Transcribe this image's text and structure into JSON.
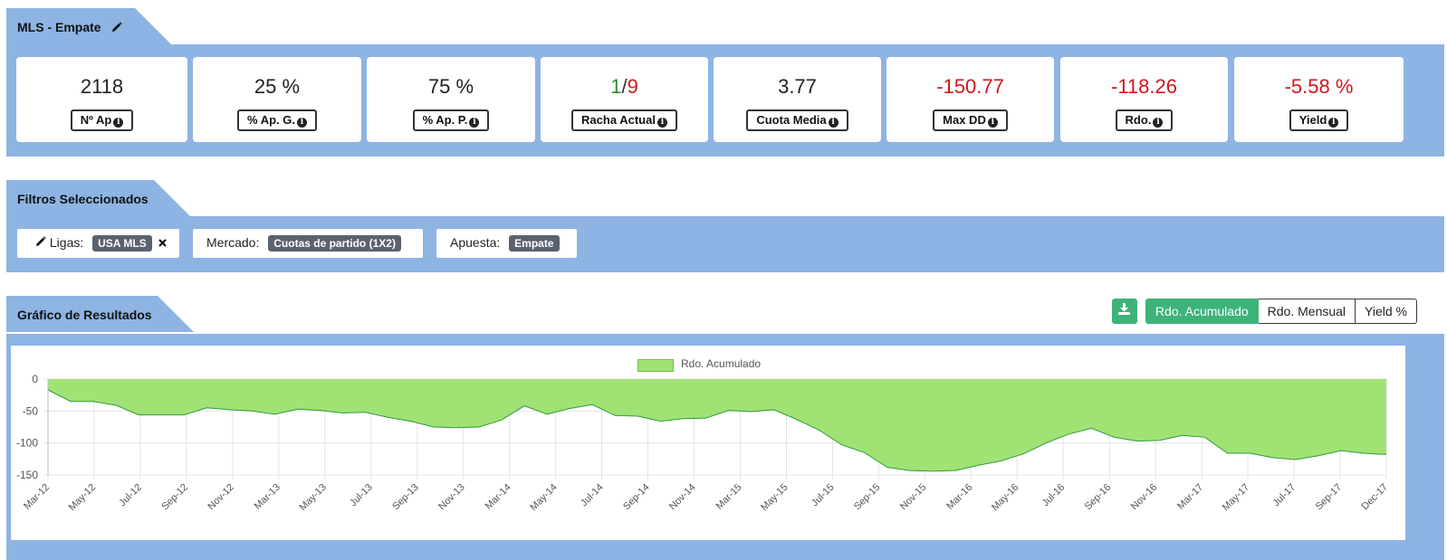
{
  "strategy": {
    "title": "MLS - Empate"
  },
  "stats": [
    {
      "value": "2118",
      "label": "Nº Ap",
      "tone": "neutral"
    },
    {
      "value": "25 %",
      "label": "% Ap. G.",
      "tone": "neutral"
    },
    {
      "value": "75 %",
      "label": "% Ap. P.",
      "tone": "neutral"
    },
    {
      "value_win": "1",
      "value_sep": "/",
      "value_loss": "9",
      "label": "Racha Actual",
      "tone": "streak"
    },
    {
      "value": "3.77",
      "label": "Cuota Media",
      "tone": "neutral"
    },
    {
      "value": "-150.77",
      "label": "Max DD",
      "tone": "negative"
    },
    {
      "value": "-118.26",
      "label": "Rdo.",
      "tone": "negative"
    },
    {
      "value": "-5.58 %",
      "label": "Yield",
      "tone": "negative"
    }
  ],
  "filters": {
    "title": "Filtros Seleccionados",
    "items": [
      {
        "label": "Ligas:",
        "value": "USA MLS",
        "editable": true,
        "removable": true
      },
      {
        "label": "Mercado:",
        "value": "Cuotas de partido (1X2)"
      },
      {
        "label": "Apuesta:",
        "value": "Empate"
      }
    ]
  },
  "results": {
    "title": "Gráfico de Resultados",
    "buttons": [
      "Rdo. Acumulado",
      "Rdo. Mensual",
      "Yield %"
    ],
    "active_button": "Rdo. Acumulado"
  },
  "colors": {
    "band": "#8eb4e3",
    "accent": "#3db37a",
    "area_fill": "#a1e275",
    "area_line": "#2f9a3a",
    "negative": "#d0161c",
    "positive": "#2a8c2a"
  },
  "chart_data": {
    "type": "area",
    "legend": [
      "Rdo. Acumulado"
    ],
    "ylim": [
      -150,
      0
    ],
    "yticks": [
      0,
      -50,
      -100,
      -150
    ],
    "xtick_labels": [
      "Mar-12",
      "May-12",
      "Jul-12",
      "Sep-12",
      "Nov-12",
      "Mar-13",
      "May-13",
      "Jul-13",
      "Sep-13",
      "Nov-13",
      "Mar-14",
      "May-14",
      "Jul-14",
      "Sep-14",
      "Nov-14",
      "Mar-15",
      "May-15",
      "Jul-15",
      "Sep-15",
      "Nov-15",
      "Mar-16",
      "May-16",
      "Jul-16",
      "Sep-16",
      "Nov-16",
      "Mar-17",
      "May-17",
      "Jul-17",
      "Sep-17",
      "Dec-17"
    ],
    "series": [
      {
        "name": "Rdo. Acumulado",
        "values": [
          -17,
          -35,
          -35,
          -41,
          -56,
          -56,
          -56,
          -45,
          -48,
          -50,
          -55,
          -47,
          -49,
          -53,
          -52,
          -60,
          -66,
          -75,
          -76,
          -75,
          -64,
          -42,
          -55,
          -46,
          -40,
          -57,
          -58,
          -66,
          -62,
          -61,
          -49,
          -51,
          -48,
          -63,
          -80,
          -103,
          -115,
          -138,
          -143,
          -144,
          -143,
          -135,
          -128,
          -117,
          -100,
          -86,
          -77,
          -91,
          -97,
          -96,
          -88,
          -91,
          -116,
          -116,
          -123,
          -126,
          -120,
          -112,
          -116,
          -118
        ]
      }
    ]
  }
}
